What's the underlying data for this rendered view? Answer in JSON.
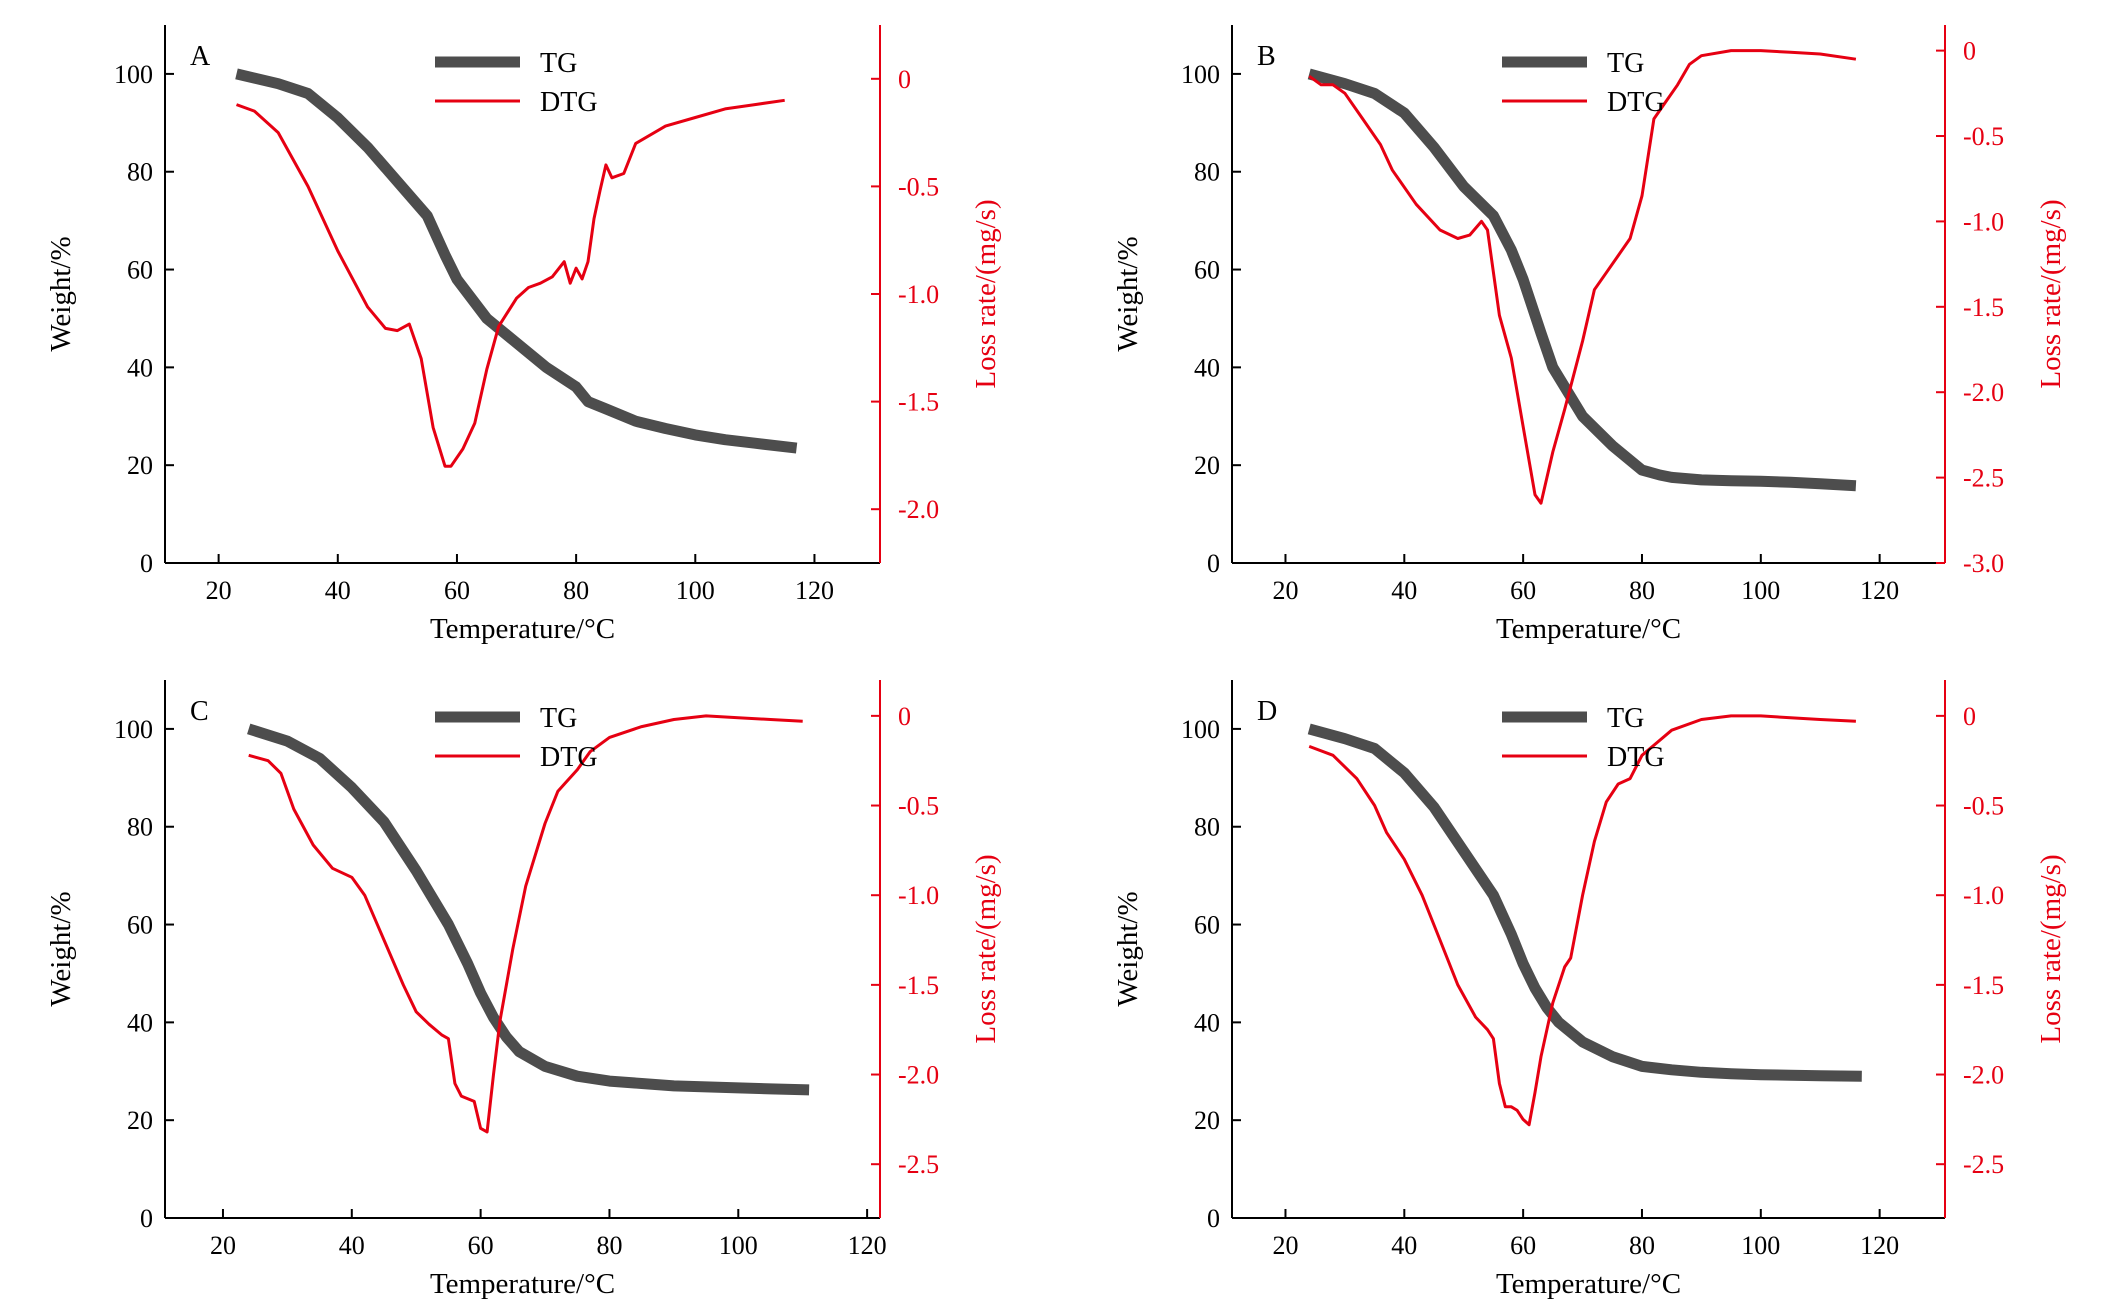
{
  "colors": {
    "tg": "#4d4d4d",
    "dtg": "#e60012",
    "axis": "#000000",
    "right_axis": "#e60012"
  },
  "chart_data": [
    {
      "panel": "A",
      "type": "line",
      "xlabel": "Temperature/°C",
      "ylabel": "Weight/%",
      "y2label": "Loss rate/(mg/s)",
      "xlim": [
        11,
        131
      ],
      "xticks": [
        20,
        40,
        60,
        80,
        100,
        120
      ],
      "ylim": [
        0,
        110
      ],
      "yticks": [
        0,
        20,
        40,
        60,
        80,
        100
      ],
      "y2lim": [
        -2.25,
        0.25
      ],
      "y2ticks": [
        0,
        -0.5,
        -1.0,
        -1.5,
        -2.0
      ],
      "y2ticklabels": [
        "0",
        "-0.5",
        "-1.0",
        "-1.5",
        "-2.0"
      ],
      "legend": [
        "TG",
        "DTG"
      ],
      "legend_position": "top-center",
      "series": [
        {
          "name": "TG",
          "x": [
            23,
            30,
            35,
            40,
            45,
            50,
            55,
            58,
            60,
            65,
            70,
            75,
            80,
            82,
            85,
            90,
            95,
            100,
            105,
            110,
            117
          ],
          "y": [
            100,
            98,
            96,
            91,
            85,
            78,
            71,
            63,
            58,
            50,
            45,
            40,
            36,
            33,
            31.5,
            29,
            27.5,
            26.2,
            25.2,
            24.5,
            23.5
          ]
        },
        {
          "name": "DTG",
          "x": [
            23,
            26,
            30,
            35,
            40,
            45,
            48,
            50,
            52,
            54,
            56,
            58,
            59,
            61,
            63,
            65,
            67,
            70,
            72,
            74,
            76,
            78,
            79,
            80,
            81,
            82,
            83,
            84,
            85,
            86,
            88,
            90,
            95,
            100,
            105,
            110,
            115
          ],
          "y": [
            -0.12,
            -0.15,
            -0.25,
            -0.5,
            -0.8,
            -1.06,
            -1.16,
            -1.17,
            -1.14,
            -1.3,
            -1.62,
            -1.8,
            -1.8,
            -1.72,
            -1.6,
            -1.35,
            -1.15,
            -1.02,
            -0.97,
            -0.95,
            -0.92,
            -0.85,
            -0.95,
            -0.88,
            -0.93,
            -0.85,
            -0.65,
            -0.52,
            -0.4,
            -0.46,
            -0.44,
            -0.3,
            -0.22,
            -0.18,
            -0.14,
            -0.12,
            -0.1
          ]
        }
      ]
    },
    {
      "panel": "B",
      "type": "line",
      "xlabel": "Temperature/°C",
      "ylabel": "Weight/%",
      "y2label": "Loss rate/(mg/s)",
      "xlim": [
        11,
        131
      ],
      "xticks": [
        20,
        40,
        60,
        80,
        100,
        120
      ],
      "ylim": [
        0,
        110
      ],
      "yticks": [
        0,
        20,
        40,
        60,
        80,
        100
      ],
      "y2lim": [
        -3.0,
        0.15
      ],
      "y2ticks": [
        0,
        -0.5,
        -1.0,
        -1.5,
        -2.0,
        -2.5,
        -3.0
      ],
      "y2ticklabels": [
        "0",
        "-0.5",
        "-1.0",
        "-1.5",
        "-2.0",
        "-2.5",
        "-3.0"
      ],
      "legend": [
        "TG",
        "DTG"
      ],
      "legend_position": "top-center",
      "series": [
        {
          "name": "TG",
          "x": [
            24,
            30,
            35,
            40,
            45,
            50,
            55,
            58,
            60,
            63,
            65,
            70,
            75,
            80,
            83,
            85,
            90,
            95,
            100,
            105,
            110,
            116
          ],
          "y": [
            100,
            98,
            96,
            92,
            85,
            77,
            71,
            64,
            58,
            47,
            40,
            30,
            24,
            19,
            18,
            17.5,
            17,
            16.8,
            16.7,
            16.5,
            16.2,
            15.8
          ]
        },
        {
          "name": "DTG",
          "x": [
            24,
            26,
            28,
            30,
            33,
            36,
            38,
            42,
            46,
            49,
            51,
            53,
            54,
            56,
            58,
            60,
            62,
            63,
            65,
            67,
            70,
            72,
            74,
            76,
            78,
            80,
            82,
            84,
            86,
            88,
            90,
            95,
            100,
            105,
            110,
            116
          ],
          "y": [
            -0.15,
            -0.2,
            -0.2,
            -0.25,
            -0.4,
            -0.55,
            -0.7,
            -0.9,
            -1.05,
            -1.1,
            -1.08,
            -1.0,
            -1.05,
            -1.55,
            -1.8,
            -2.2,
            -2.6,
            -2.65,
            -2.35,
            -2.1,
            -1.7,
            -1.4,
            -1.3,
            -1.2,
            -1.1,
            -0.85,
            -0.4,
            -0.3,
            -0.2,
            -0.08,
            -0.03,
            0,
            0,
            -0.01,
            -0.02,
            -0.05
          ]
        }
      ]
    },
    {
      "panel": "C",
      "type": "line",
      "xlabel": "Temperature/°C",
      "ylabel": "Weight/%",
      "y2label": "Loss rate/(mg/s)",
      "xlim": [
        11,
        122
      ],
      "xticks": [
        20,
        40,
        60,
        80,
        100,
        120
      ],
      "ylim": [
        0,
        110
      ],
      "yticks": [
        0,
        20,
        40,
        60,
        80,
        100
      ],
      "y2lim": [
        -2.8,
        0.2
      ],
      "y2ticks": [
        0,
        -0.5,
        -1.0,
        -1.5,
        -2.0,
        -2.5
      ],
      "y2ticklabels": [
        "0",
        "-0.5",
        "-1.0",
        "-1.5",
        "-2.0",
        "-2.5"
      ],
      "legend": [
        "TG",
        "DTG"
      ],
      "legend_position": "top-center",
      "series": [
        {
          "name": "TG",
          "x": [
            24,
            30,
            35,
            40,
            45,
            50,
            55,
            58,
            60,
            62,
            64,
            66,
            70,
            75,
            80,
            85,
            90,
            95,
            100,
            105,
            111
          ],
          "y": [
            100,
            97.5,
            94,
            88,
            81,
            71,
            60,
            52,
            46,
            41,
            37,
            34,
            31,
            29,
            28,
            27.5,
            27,
            26.8,
            26.6,
            26.4,
            26.2
          ]
        },
        {
          "name": "DTG",
          "x": [
            24,
            27,
            29,
            31,
            34,
            37,
            40,
            42,
            45,
            48,
            50,
            52,
            54,
            55,
            56,
            57,
            59,
            60,
            61,
            62,
            63,
            65,
            67,
            70,
            72,
            73,
            75,
            77,
            80,
            85,
            90,
            95,
            100,
            105,
            110
          ],
          "y": [
            -0.22,
            -0.25,
            -0.32,
            -0.52,
            -0.72,
            -0.85,
            -0.9,
            -1.0,
            -1.25,
            -1.5,
            -1.65,
            -1.72,
            -1.78,
            -1.8,
            -2.05,
            -2.12,
            -2.15,
            -2.3,
            -2.32,
            -2.0,
            -1.7,
            -1.3,
            -0.95,
            -0.6,
            -0.42,
            -0.38,
            -0.3,
            -0.2,
            -0.12,
            -0.06,
            -0.02,
            0,
            -0.01,
            -0.02,
            -0.03
          ]
        }
      ]
    },
    {
      "panel": "D",
      "type": "line",
      "xlabel": "Temperature/°C",
      "ylabel": "Weight/%",
      "y2label": "Loss rate/(mg/s)",
      "xlim": [
        11,
        131
      ],
      "xticks": [
        20,
        40,
        60,
        80,
        100,
        120
      ],
      "ylim": [
        0,
        110
      ],
      "yticks": [
        0,
        20,
        40,
        60,
        80,
        100
      ],
      "y2lim": [
        -2.8,
        0.2
      ],
      "y2ticks": [
        0,
        -0.5,
        -1.0,
        -1.5,
        -2.0,
        -2.5
      ],
      "y2ticklabels": [
        "0",
        "-0.5",
        "-1.0",
        "-1.5",
        "-2.0",
        "-2.5"
      ],
      "legend": [
        "TG",
        "DTG"
      ],
      "legend_position": "top-center",
      "series": [
        {
          "name": "TG",
          "x": [
            24,
            30,
            35,
            40,
            45,
            50,
            55,
            58,
            60,
            62,
            64,
            66,
            70,
            75,
            80,
            85,
            90,
            95,
            100,
            105,
            110,
            117
          ],
          "y": [
            100,
            98,
            96,
            91,
            84,
            75,
            66,
            58,
            52,
            47,
            43,
            40,
            36,
            33,
            31,
            30.3,
            29.8,
            29.5,
            29.3,
            29.2,
            29.1,
            29
          ]
        },
        {
          "name": "DTG",
          "x": [
            24,
            28,
            32,
            35,
            37,
            40,
            43,
            46,
            49,
            52,
            54,
            55,
            56,
            57,
            58,
            59,
            60,
            61,
            62,
            63,
            65,
            67,
            68,
            70,
            72,
            74,
            76,
            78,
            80,
            85,
            90,
            95,
            100,
            105,
            110,
            116
          ],
          "y": [
            -0.17,
            -0.22,
            -0.35,
            -0.5,
            -0.65,
            -0.8,
            -1.0,
            -1.25,
            -1.5,
            -1.68,
            -1.75,
            -1.8,
            -2.05,
            -2.18,
            -2.18,
            -2.2,
            -2.25,
            -2.28,
            -2.1,
            -1.9,
            -1.6,
            -1.4,
            -1.35,
            -1.0,
            -0.7,
            -0.48,
            -0.38,
            -0.35,
            -0.22,
            -0.08,
            -0.02,
            0,
            0,
            -0.01,
            -0.02,
            -0.03
          ]
        }
      ]
    }
  ]
}
